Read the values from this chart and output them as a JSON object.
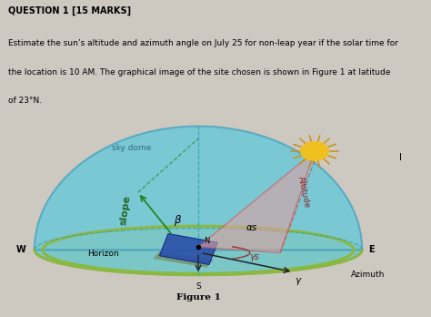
{
  "title_line1": "QUESTION 1 [15 MARKS]",
  "body_line1": "Estimate the sun’s altitude and azimuth angle on July 25 for non-leap year if the solar time for",
  "body_line2": "the location is 10 AM. The graphical image of the site chosen is shown in Figure 1 at latitude",
  "body_line3": "of 23°N.",
  "figure_caption": "Figure 1",
  "bg_color": "#cdc8c0",
  "dome_color": "#7ecbd6",
  "ground_color": "#cfc050",
  "horizon_color": "#8ab840",
  "panel_color": "#3a5faa",
  "altitude_fill": "#e8b0b0",
  "sun_color": "#f0c020",
  "sun_ray_color": "#c89010",
  "labels": {
    "sky_dome": "sky dome",
    "slope": "slope",
    "horizon": "Horizon",
    "altitude": "Altitude",
    "azimuth": "Azimuth",
    "W": "W",
    "E": "E",
    "S": "S",
    "N": "N",
    "beta": "β",
    "alpha_s": "αs",
    "gamma_s": "γs",
    "gamma": "γ",
    "I": "I"
  }
}
